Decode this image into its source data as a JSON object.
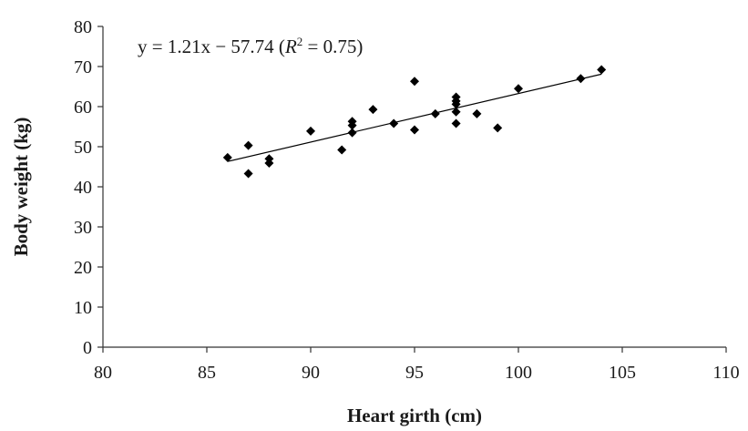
{
  "chart_data": {
    "type": "scatter",
    "title": "",
    "xlabel": "Heart girth (cm)",
    "ylabel": "Body weight (kg)",
    "xlim": [
      80,
      110
    ],
    "ylim": [
      0,
      80
    ],
    "xticks": [
      80,
      85,
      90,
      95,
      100,
      105,
      110
    ],
    "yticks": [
      0,
      10,
      20,
      30,
      40,
      50,
      60,
      70,
      80
    ],
    "grid": false,
    "legend": "none",
    "marker": "diamond",
    "marker_color": "#000000",
    "series": [
      {
        "points": [
          {
            "x": 86,
            "y": 47.3
          },
          {
            "x": 87,
            "y": 50.3
          },
          {
            "x": 87,
            "y": 43.3
          },
          {
            "x": 88,
            "y": 47.0
          },
          {
            "x": 88,
            "y": 45.9
          },
          {
            "x": 90,
            "y": 53.9
          },
          {
            "x": 91.5,
            "y": 49.2
          },
          {
            "x": 92,
            "y": 56.3
          },
          {
            "x": 92,
            "y": 55.3
          },
          {
            "x": 92,
            "y": 53.5
          },
          {
            "x": 93,
            "y": 59.3
          },
          {
            "x": 94,
            "y": 55.8
          },
          {
            "x": 95,
            "y": 66.3
          },
          {
            "x": 95,
            "y": 54.2
          },
          {
            "x": 96,
            "y": 58.2
          },
          {
            "x": 97,
            "y": 62.4
          },
          {
            "x": 97,
            "y": 61.4
          },
          {
            "x": 97,
            "y": 60.6
          },
          {
            "x": 97,
            "y": 58.7
          },
          {
            "x": 97,
            "y": 55.8
          },
          {
            "x": 98,
            "y": 58.2
          },
          {
            "x": 99,
            "y": 54.7
          },
          {
            "x": 100,
            "y": 64.5
          },
          {
            "x": 103,
            "y": 67.0
          },
          {
            "x": 104,
            "y": 69.2
          }
        ]
      }
    ],
    "trendline": {
      "slope": 1.21,
      "intercept": -57.74,
      "x_range": [
        86,
        104
      ],
      "equation_text": "y = 1.21x − 57.74 (",
      "r_symbol": "R",
      "r_power": "2",
      "r_value_text": " = 0.75)"
    }
  }
}
